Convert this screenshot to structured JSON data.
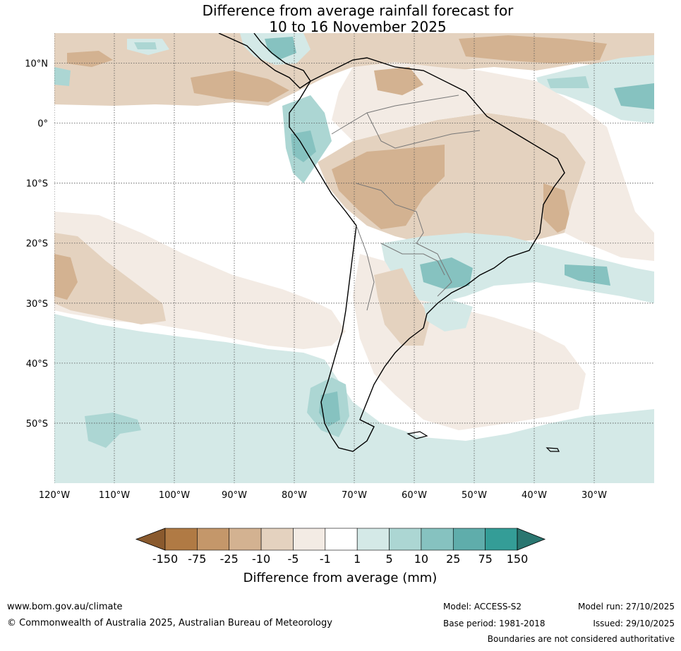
{
  "title": {
    "line1": "Difference from average rainfall forecast for",
    "line2": "10 to 16 November 2025"
  },
  "map": {
    "lat_labels": [
      "10°N",
      "0°",
      "10°S",
      "20°S",
      "30°S",
      "40°S",
      "50°S"
    ],
    "lon_labels": [
      "120°W",
      "110°W",
      "100°W",
      "90°W",
      "80°W",
      "70°W",
      "60°W",
      "50°W",
      "40°W",
      "30°W"
    ],
    "lat_values": [
      10,
      0,
      -10,
      -20,
      -30,
      -40,
      -50
    ],
    "lon_values": [
      -120,
      -110,
      -100,
      -90,
      -80,
      -70,
      -60,
      -50,
      -40,
      -30
    ],
    "extent": {
      "lon_min": -120,
      "lon_max": -20,
      "lat_min": -60,
      "lat_max": 15
    }
  },
  "colorbar": {
    "title": "Difference from average (mm)",
    "tick_labels": [
      "-150",
      "-75",
      "-25",
      "-10",
      "-5",
      "-1",
      "1",
      "5",
      "10",
      "25",
      "75",
      "150"
    ],
    "colors": [
      "#8a5a2e",
      "#b07a44",
      "#c4976a",
      "#d3b291",
      "#e4d2bf",
      "#f3ebe4",
      "#ffffff",
      "#d4e9e7",
      "#acd6d3",
      "#86c2c0",
      "#5fadab",
      "#349d97",
      "#2a7670"
    ]
  },
  "footer": {
    "url": "www.bom.gov.au/climate",
    "copyright": "© Commonwealth of Australia 2025, Australian Bureau of Meteorology",
    "model": "Model: ACCESS-S2",
    "base_period": "Base period: 1981-2018",
    "model_run": "Model run: 27/10/2025",
    "issued": "Issued: 29/10/2025",
    "disclaimer": "Boundaries are not considered authoritative"
  }
}
